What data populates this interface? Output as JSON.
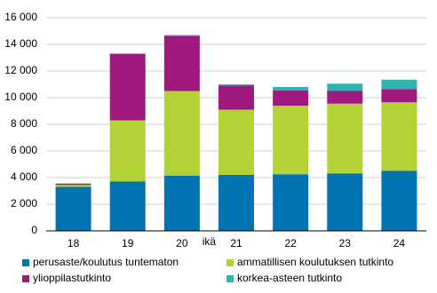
{
  "chart_data": {
    "type": "stacked_bar",
    "x_label": "ikä",
    "categories": [
      "18",
      "19",
      "20",
      "21",
      "22",
      "23",
      "24"
    ],
    "series": [
      {
        "name": "perusaste/koulutus tuntematon",
        "color": "#0073b0",
        "values": [
          3300,
          3700,
          4150,
          4200,
          4250,
          4300,
          4500
        ]
      },
      {
        "name": "ammatillisen koulutuksen tutkinto",
        "color": "#b3d235",
        "values": [
          150,
          4600,
          6350,
          4900,
          5150,
          5250,
          5150
        ]
      },
      {
        "name": "ylioppilastutkinto",
        "color": "#a0197f",
        "values": [
          100,
          5000,
          4150,
          1800,
          1150,
          950,
          1000
        ]
      },
      {
        "name": "korkea-asteen tutkinto",
        "color": "#2eb5b3",
        "values": [
          0,
          0,
          50,
          100,
          250,
          550,
          700
        ]
      }
    ],
    "ylim": [
      0,
      16000
    ],
    "yticks": [
      0,
      {
        "value": 2000,
        "label": "2 000"
      },
      {
        "value": 4000,
        "label": "4 000"
      },
      {
        "value": 6000,
        "label": "6 000"
      },
      {
        "value": 8000,
        "label": "8 000"
      },
      {
        "value": 10000,
        "label": "10 000"
      },
      {
        "value": 12000,
        "label": "12 000"
      },
      {
        "value": 14000,
        "label": "14 000"
      },
      {
        "value": 16000,
        "label": "16 000"
      }
    ],
    "grid": true
  }
}
